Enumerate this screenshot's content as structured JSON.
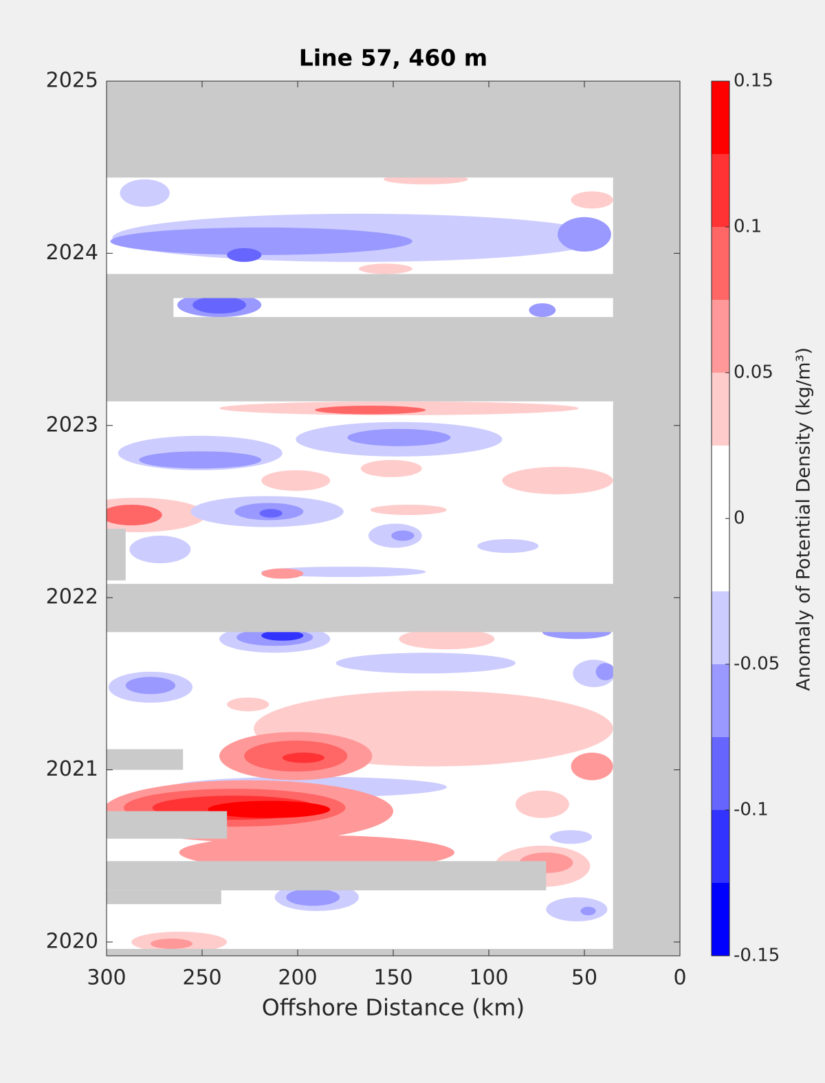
{
  "chart_data": {
    "type": "contour",
    "title": "Line 57, 460 m",
    "x_label": "Offshore Distance (km)",
    "colorbar_label": "Anomaly of Potential Density (kg/m³)",
    "xlim": [
      300,
      0
    ],
    "ylim": [
      2019.92,
      2025
    ],
    "xticks": [
      300,
      250,
      200,
      150,
      100,
      50,
      0
    ],
    "yticks": [
      2020,
      2021,
      2022,
      2023,
      2024,
      2025
    ],
    "clim": [
      -0.15,
      0.15
    ],
    "cticks": [
      -0.15,
      -0.1,
      -0.05,
      0,
      0.05,
      0.1,
      0.15
    ],
    "levels": [
      -0.15,
      -0.125,
      -0.1,
      -0.075,
      -0.05,
      -0.025,
      0,
      0.025,
      0.05,
      0.075,
      0.1,
      0.125,
      0.15
    ],
    "level_colors": [
      "#0000ff",
      "#3333ff",
      "#6666ff",
      "#9999ff",
      "#ccccff",
      "#ffffff",
      "#ffffff",
      "#ffcccc",
      "#ff9999",
      "#ff6666",
      "#ff3333",
      "#ff0000"
    ],
    "missing_color": "#cacaca",
    "features": [
      {
        "x": 168,
        "y": 2024.09,
        "rx": 129,
        "ry": 0.14,
        "value": -0.0375
      },
      {
        "x": 219,
        "y": 2024.07,
        "rx": 79,
        "ry": 0.08,
        "value": -0.0625
      },
      {
        "x": 228,
        "y": 2023.99,
        "rx": 9,
        "ry": 0.04,
        "value": -0.0875
      },
      {
        "x": 280,
        "y": 2024.35,
        "rx": 13,
        "ry": 0.08,
        "value": -0.0375
      },
      {
        "x": 50,
        "y": 2024.11,
        "rx": 14,
        "ry": 0.1,
        "value": -0.0625
      },
      {
        "x": 46,
        "y": 2024.31,
        "rx": 11,
        "ry": 0.05,
        "value": 0.0375
      },
      {
        "x": 133,
        "y": 2024.43,
        "rx": 22,
        "ry": 0.03,
        "value": 0.0375
      },
      {
        "x": 154,
        "y": 2023.91,
        "rx": 14,
        "ry": 0.03,
        "value": 0.0375
      },
      {
        "x": 241,
        "y": 2023.7,
        "rx": 22,
        "ry": 0.07,
        "value": -0.0625
      },
      {
        "x": 241,
        "y": 2023.7,
        "rx": 14,
        "ry": 0.05,
        "value": -0.0875
      },
      {
        "x": 72,
        "y": 2023.67,
        "rx": 7,
        "ry": 0.04,
        "value": -0.0625
      },
      {
        "x": 147,
        "y": 2023.1,
        "rx": 94,
        "ry": 0.04,
        "value": 0.0375
      },
      {
        "x": 162,
        "y": 2023.09,
        "rx": 29,
        "ry": 0.025,
        "value": 0.0875
      },
      {
        "x": 251,
        "y": 2022.84,
        "rx": 43,
        "ry": 0.1,
        "value": -0.0375
      },
      {
        "x": 251,
        "y": 2022.8,
        "rx": 32,
        "ry": 0.05,
        "value": -0.0625
      },
      {
        "x": 147,
        "y": 2022.92,
        "rx": 54,
        "ry": 0.1,
        "value": -0.0375
      },
      {
        "x": 147,
        "y": 2022.93,
        "rx": 27,
        "ry": 0.05,
        "value": -0.0625
      },
      {
        "x": 151,
        "y": 2022.75,
        "rx": 16,
        "ry": 0.05,
        "value": 0.0375
      },
      {
        "x": 64,
        "y": 2022.68,
        "rx": 29,
        "ry": 0.08,
        "value": 0.0375
      },
      {
        "x": 201,
        "y": 2022.68,
        "rx": 18,
        "ry": 0.06,
        "value": 0.0375
      },
      {
        "x": 284,
        "y": 2022.48,
        "rx": 36,
        "ry": 0.1,
        "value": 0.0375
      },
      {
        "x": 287,
        "y": 2022.48,
        "rx": 16,
        "ry": 0.06,
        "value": 0.0875
      },
      {
        "x": 216,
        "y": 2022.5,
        "rx": 40,
        "ry": 0.09,
        "value": -0.0375
      },
      {
        "x": 215,
        "y": 2022.5,
        "rx": 18,
        "ry": 0.05,
        "value": -0.0625
      },
      {
        "x": 214,
        "y": 2022.49,
        "rx": 6,
        "ry": 0.025,
        "value": -0.0875
      },
      {
        "x": 149,
        "y": 2022.36,
        "rx": 14,
        "ry": 0.07,
        "value": -0.0375
      },
      {
        "x": 145,
        "y": 2022.36,
        "rx": 6,
        "ry": 0.03,
        "value": -0.0625
      },
      {
        "x": 142,
        "y": 2022.51,
        "rx": 20,
        "ry": 0.03,
        "value": 0.0375
      },
      {
        "x": 90,
        "y": 2022.3,
        "rx": 16,
        "ry": 0.04,
        "value": -0.0375
      },
      {
        "x": 272,
        "y": 2022.28,
        "rx": 16,
        "ry": 0.08,
        "value": -0.0375
      },
      {
        "x": 176,
        "y": 2022.15,
        "rx": 43,
        "ry": 0.03,
        "value": -0.0375
      },
      {
        "x": 208,
        "y": 2022.14,
        "rx": 11,
        "ry": 0.03,
        "value": 0.0625
      },
      {
        "x": 212,
        "y": 2021.76,
        "rx": 29,
        "ry": 0.08,
        "value": -0.0375
      },
      {
        "x": 212,
        "y": 2021.77,
        "rx": 20,
        "ry": 0.05,
        "value": -0.0625
      },
      {
        "x": 208,
        "y": 2021.78,
        "rx": 11,
        "ry": 0.03,
        "value": -0.1125
      },
      {
        "x": 54,
        "y": 2021.8,
        "rx": 18,
        "ry": 0.04,
        "value": -0.0625
      },
      {
        "x": 122,
        "y": 2021.76,
        "rx": 25,
        "ry": 0.06,
        "value": 0.0375
      },
      {
        "x": 133,
        "y": 2021.62,
        "rx": 47,
        "ry": 0.06,
        "value": -0.0375
      },
      {
        "x": 277,
        "y": 2021.48,
        "rx": 22,
        "ry": 0.09,
        "value": -0.0375
      },
      {
        "x": 277,
        "y": 2021.49,
        "rx": 13,
        "ry": 0.05,
        "value": -0.0625
      },
      {
        "x": 45,
        "y": 2021.56,
        "rx": 11,
        "ry": 0.08,
        "value": -0.0375
      },
      {
        "x": 39,
        "y": 2021.57,
        "rx": 5,
        "ry": 0.05,
        "value": -0.0625
      },
      {
        "x": 129,
        "y": 2021.24,
        "rx": 94,
        "ry": 0.22,
        "value": 0.0375
      },
      {
        "x": 226,
        "y": 2021.38,
        "rx": 11,
        "ry": 0.04,
        "value": 0.0375
      },
      {
        "x": 201,
        "y": 2021.08,
        "rx": 40,
        "ry": 0.14,
        "value": 0.0625
      },
      {
        "x": 201,
        "y": 2021.08,
        "rx": 27,
        "ry": 0.09,
        "value": 0.0875
      },
      {
        "x": 197,
        "y": 2021.07,
        "rx": 11,
        "ry": 0.03,
        "value": 0.1125
      },
      {
        "x": 46,
        "y": 2021.02,
        "rx": 11,
        "ry": 0.08,
        "value": 0.0625
      },
      {
        "x": 72,
        "y": 2020.8,
        "rx": 14,
        "ry": 0.08,
        "value": 0.0375
      },
      {
        "x": 194,
        "y": 2020.9,
        "rx": 72,
        "ry": 0.06,
        "value": -0.0375
      },
      {
        "x": 226,
        "y": 2020.76,
        "rx": 76,
        "ry": 0.18,
        "value": 0.0625
      },
      {
        "x": 233,
        "y": 2020.78,
        "rx": 58,
        "ry": 0.11,
        "value": 0.0875
      },
      {
        "x": 233,
        "y": 2020.78,
        "rx": 43,
        "ry": 0.07,
        "value": 0.1125
      },
      {
        "x": 215,
        "y": 2020.77,
        "rx": 32,
        "ry": 0.05,
        "value": 0.1375
      },
      {
        "x": 190,
        "y": 2020.52,
        "rx": 72,
        "ry": 0.1,
        "value": 0.0625
      },
      {
        "x": 72,
        "y": 2020.44,
        "rx": 25,
        "ry": 0.12,
        "value": 0.0375
      },
      {
        "x": 70,
        "y": 2020.46,
        "rx": 14,
        "ry": 0.06,
        "value": 0.0625
      },
      {
        "x": 57,
        "y": 2020.61,
        "rx": 11,
        "ry": 0.04,
        "value": -0.0375
      },
      {
        "x": 190,
        "y": 2020.26,
        "rx": 22,
        "ry": 0.08,
        "value": -0.0375
      },
      {
        "x": 192,
        "y": 2020.26,
        "rx": 14,
        "ry": 0.05,
        "value": -0.0625
      },
      {
        "x": 54,
        "y": 2020.19,
        "rx": 16,
        "ry": 0.07,
        "value": -0.0375
      },
      {
        "x": 48,
        "y": 2020.18,
        "rx": 4,
        "ry": 0.025,
        "value": -0.0625
      },
      {
        "x": 262,
        "y": 2020.0,
        "rx": 25,
        "ry": 0.06,
        "value": 0.0375
      },
      {
        "x": 266,
        "y": 2019.99,
        "rx": 11,
        "ry": 0.03,
        "value": 0.0625
      }
    ],
    "missing_regions": [
      {
        "x": [
          300,
          0
        ],
        "y": [
          2024.44,
          2025
        ]
      },
      {
        "x": [
          35,
          0
        ],
        "y": [
          2019.92,
          2025
        ]
      },
      {
        "x": [
          300,
          0
        ],
        "y": [
          2023.74,
          2023.88
        ]
      },
      {
        "x": [
          300,
          265
        ],
        "y": [
          2023.63,
          2023.74
        ]
      },
      {
        "x": [
          300,
          0
        ],
        "y": [
          2023.14,
          2023.63
        ]
      },
      {
        "x": [
          300,
          0
        ],
        "y": [
          2021.8,
          2022.08
        ]
      },
      {
        "x": [
          300,
          290
        ],
        "y": [
          2022.1,
          2022.4
        ]
      },
      {
        "x": [
          300,
          260
        ],
        "y": [
          2021.0,
          2021.12
        ]
      },
      {
        "x": [
          300,
          237
        ],
        "y": [
          2020.6,
          2020.76
        ]
      },
      {
        "x": [
          300,
          70
        ],
        "y": [
          2020.3,
          2020.47
        ]
      },
      {
        "x": [
          300,
          240
        ],
        "y": [
          2020.22,
          2020.3
        ]
      },
      {
        "x": [
          300,
          0
        ],
        "y": [
          2019.92,
          2019.96
        ]
      }
    ]
  }
}
